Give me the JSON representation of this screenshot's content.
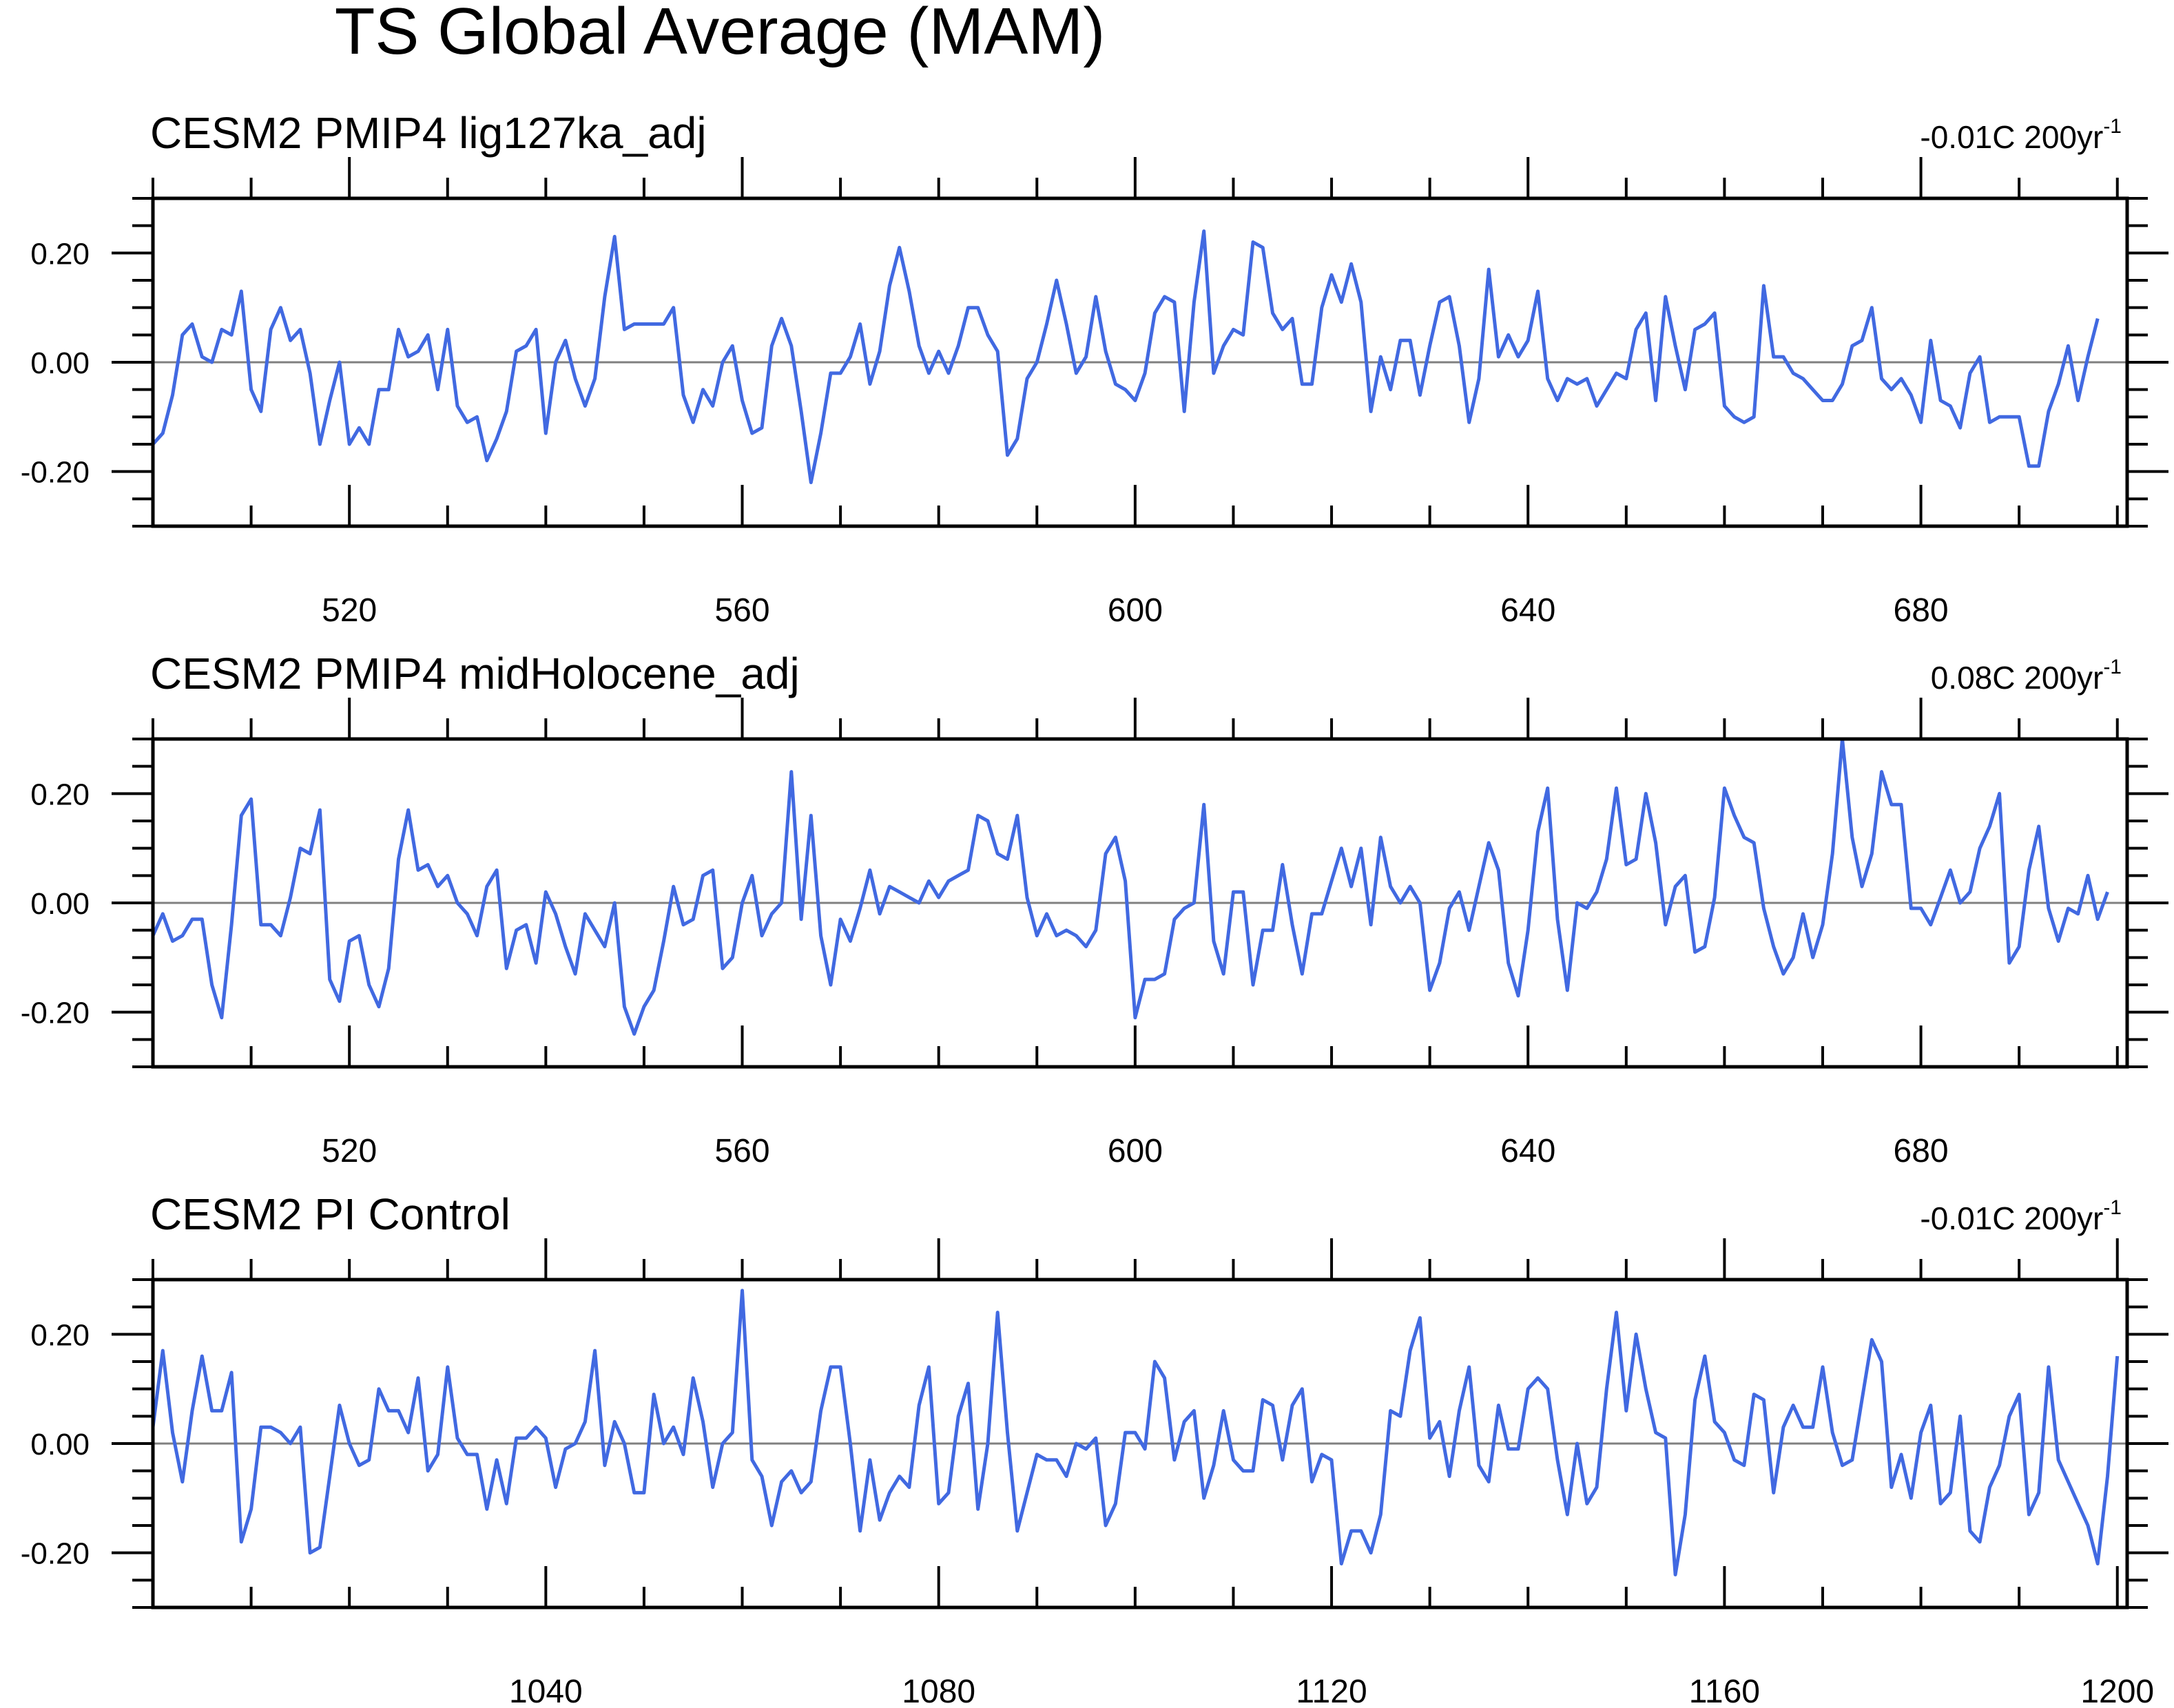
{
  "figure_title": "TS Global Average (MAM)",
  "colors": {
    "series": "#4169e1",
    "zero_line": "#808080",
    "frame": "#000000"
  },
  "chart_data": [
    {
      "type": "line",
      "title": "CESM2 PMIP4 lig127ka_adj",
      "trend_value": "-0.01C 200yr",
      "trend_exponent": "-1",
      "xlim": [
        500,
        701
      ],
      "ylim": [
        -0.3,
        0.3
      ],
      "x_ticks": [
        520,
        560,
        600,
        640,
        680
      ],
      "y_ticks": [
        0.2,
        0.0,
        -0.2
      ],
      "y_tick_labels": [
        "0.20",
        "0.00",
        "-0.20"
      ],
      "zero_line": true,
      "series": [
        {
          "x_start": 500,
          "x_step": 1,
          "values": [
            -0.15,
            -0.13,
            -0.06,
            0.05,
            0.07,
            0.01,
            0.0,
            0.06,
            0.05,
            0.13,
            -0.05,
            -0.09,
            0.06,
            0.1,
            0.04,
            0.06,
            -0.02,
            -0.15,
            -0.07,
            0.0,
            -0.15,
            -0.12,
            -0.15,
            -0.05,
            -0.05,
            0.06,
            0.01,
            0.02,
            0.05,
            -0.05,
            0.06,
            -0.08,
            -0.11,
            -0.1,
            -0.18,
            -0.14,
            -0.09,
            0.02,
            0.03,
            0.06,
            -0.13,
            0.0,
            0.04,
            -0.03,
            -0.08,
            -0.03,
            0.12,
            0.23,
            0.06,
            0.07,
            0.07,
            0.07,
            0.07,
            0.1,
            -0.06,
            -0.11,
            -0.05,
            -0.08,
            0.0,
            0.03,
            -0.07,
            -0.13,
            -0.12,
            0.03,
            0.08,
            0.03,
            -0.09,
            -0.22,
            -0.13,
            -0.02,
            -0.02,
            0.01,
            0.07,
            -0.04,
            0.02,
            0.14,
            0.21,
            0.13,
            0.03,
            -0.02,
            0.02,
            -0.02,
            0.03,
            0.1,
            0.1,
            0.05,
            0.02,
            -0.17,
            -0.14,
            -0.03,
            0.0,
            0.07,
            0.15,
            0.07,
            -0.02,
            0.01,
            0.12,
            0.02,
            -0.04,
            -0.05,
            -0.07,
            -0.02,
            0.09,
            0.12,
            0.11,
            -0.09,
            0.11,
            0.24,
            -0.02,
            0.03,
            0.06,
            0.05,
            0.22,
            0.21,
            0.09,
            0.06,
            0.08,
            -0.04,
            -0.04,
            0.1,
            0.16,
            0.11,
            0.18,
            0.11,
            -0.09,
            0.01,
            -0.05,
            0.04,
            0.04,
            -0.06,
            0.03,
            0.11,
            0.12,
            0.03,
            -0.11,
            -0.03,
            0.17,
            0.01,
            0.05,
            0.01,
            0.04,
            0.13,
            -0.03,
            -0.07,
            -0.03,
            -0.04,
            -0.03,
            -0.08,
            -0.05,
            -0.02,
            -0.03,
            0.06,
            0.09,
            -0.07,
            0.12,
            0.03,
            -0.05,
            0.06,
            0.07,
            0.09,
            -0.08,
            -0.1,
            -0.11,
            -0.1,
            0.14,
            0.01,
            0.01,
            -0.02,
            -0.03,
            -0.05,
            -0.07,
            -0.07,
            -0.04,
            0.03,
            0.04,
            0.1,
            -0.03,
            -0.05,
            -0.03,
            -0.06,
            -0.11,
            0.04,
            -0.07,
            -0.08,
            -0.12,
            -0.02,
            0.01,
            -0.11,
            -0.1,
            -0.1,
            -0.1,
            -0.19,
            -0.19,
            -0.09,
            -0.04,
            0.03,
            -0.07,
            0.01,
            0.08
          ]
        }
      ]
    },
    {
      "type": "line",
      "title": "CESM2 PMIP4 midHolocene_adj",
      "trend_value": "0.08C 200yr",
      "trend_exponent": "-1",
      "xlim": [
        500,
        701
      ],
      "ylim": [
        -0.3,
        0.3
      ],
      "x_ticks": [
        520,
        560,
        600,
        640,
        680
      ],
      "y_ticks": [
        0.2,
        0.0,
        -0.2
      ],
      "y_tick_labels": [
        "0.20",
        "0.00",
        "-0.20"
      ],
      "zero_line": true,
      "series": [
        {
          "x_start": 500,
          "x_step": 1,
          "values": [
            -0.06,
            -0.02,
            -0.07,
            -0.06,
            -0.03,
            -0.03,
            -0.15,
            -0.21,
            -0.04,
            0.16,
            0.19,
            -0.04,
            -0.04,
            -0.06,
            0.01,
            0.1,
            0.09,
            0.17,
            -0.14,
            -0.18,
            -0.07,
            -0.06,
            -0.15,
            -0.19,
            -0.12,
            0.08,
            0.17,
            0.06,
            0.07,
            0.03,
            0.05,
            0.0,
            -0.02,
            -0.06,
            0.03,
            0.06,
            -0.12,
            -0.05,
            -0.04,
            -0.11,
            0.02,
            -0.02,
            -0.08,
            -0.13,
            -0.02,
            -0.05,
            -0.08,
            0.0,
            -0.19,
            -0.24,
            -0.19,
            -0.16,
            -0.07,
            0.03,
            -0.04,
            -0.03,
            0.05,
            0.06,
            -0.12,
            -0.1,
            0.0,
            0.05,
            -0.06,
            -0.02,
            0.0,
            0.24,
            -0.03,
            0.16,
            -0.06,
            -0.15,
            -0.03,
            -0.07,
            -0.01,
            0.06,
            -0.02,
            0.03,
            0.02,
            0.01,
            0.0,
            0.04,
            0.01,
            0.04,
            0.05,
            0.06,
            0.16,
            0.15,
            0.09,
            0.08,
            0.16,
            0.01,
            -0.06,
            -0.02,
            -0.06,
            -0.05,
            -0.06,
            -0.08,
            -0.05,
            0.09,
            0.12,
            0.04,
            -0.21,
            -0.14,
            -0.14,
            -0.13,
            -0.03,
            -0.01,
            0.0,
            0.18,
            -0.07,
            -0.13,
            0.02,
            0.02,
            -0.15,
            -0.05,
            -0.05,
            0.07,
            -0.04,
            -0.13,
            -0.02,
            -0.02,
            0.04,
            0.1,
            0.03,
            0.1,
            -0.04,
            0.12,
            0.03,
            0.0,
            0.03,
            0.0,
            -0.16,
            -0.11,
            -0.01,
            0.02,
            -0.05,
            0.03,
            0.11,
            0.06,
            -0.11,
            -0.17,
            -0.05,
            0.13,
            0.21,
            -0.03,
            -0.16,
            0.0,
            -0.01,
            0.02,
            0.08,
            0.21,
            0.07,
            0.08,
            0.2,
            0.11,
            -0.04,
            0.03,
            0.05,
            -0.09,
            -0.08,
            0.01,
            0.21,
            0.16,
            0.12,
            0.11,
            -0.01,
            -0.08,
            -0.13,
            -0.1,
            -0.02,
            -0.1,
            -0.04,
            0.09,
            0.3,
            0.12,
            0.03,
            0.09,
            0.24,
            0.18,
            0.18,
            -0.01,
            -0.01,
            -0.04,
            0.01,
            0.06,
            0.0,
            0.02,
            0.1,
            0.14,
            0.2,
            -0.11,
            -0.08,
            0.06,
            0.14,
            -0.01,
            -0.07,
            -0.01,
            -0.02,
            0.05,
            -0.03,
            0.02
          ]
        }
      ]
    },
    {
      "type": "line",
      "title": "CESM2 PI Control",
      "trend_value": "-0.01C 200yr",
      "trend_exponent": "-1",
      "xlim": [
        1000,
        1201
      ],
      "ylim": [
        -0.3,
        0.3
      ],
      "x_ticks": [
        1040,
        1080,
        1120,
        1160,
        1200
      ],
      "y_ticks": [
        0.2,
        0.0,
        -0.2
      ],
      "y_tick_labels": [
        "0.20",
        "0.00",
        "-0.20"
      ],
      "zero_line": true,
      "series": [
        {
          "x_start": 1000,
          "x_step": 1,
          "values": [
            0.03,
            0.17,
            0.02,
            -0.07,
            0.06,
            0.16,
            0.06,
            0.06,
            0.13,
            -0.18,
            -0.12,
            0.03,
            0.03,
            0.02,
            0.0,
            0.03,
            -0.2,
            -0.19,
            -0.06,
            0.07,
            0.0,
            -0.04,
            -0.03,
            0.1,
            0.06,
            0.06,
            0.02,
            0.12,
            -0.05,
            -0.02,
            0.14,
            0.01,
            -0.02,
            -0.02,
            -0.12,
            -0.03,
            -0.11,
            0.01,
            0.01,
            0.03,
            0.01,
            -0.08,
            -0.01,
            0.0,
            0.04,
            0.17,
            -0.04,
            0.04,
            0.0,
            -0.09,
            -0.09,
            0.09,
            0.0,
            0.03,
            -0.02,
            0.12,
            0.04,
            -0.08,
            0.0,
            0.02,
            0.28,
            -0.03,
            -0.06,
            -0.15,
            -0.07,
            -0.05,
            -0.09,
            -0.07,
            0.06,
            0.14,
            0.14,
            0.0,
            -0.16,
            -0.03,
            -0.14,
            -0.09,
            -0.06,
            -0.08,
            0.07,
            0.14,
            -0.11,
            -0.09,
            0.05,
            0.11,
            -0.12,
            0.0,
            0.24,
            0.02,
            -0.16,
            -0.09,
            -0.02,
            -0.03,
            -0.03,
            -0.06,
            0.0,
            -0.01,
            0.01,
            -0.15,
            -0.11,
            0.02,
            0.02,
            -0.01,
            0.15,
            0.12,
            -0.03,
            0.04,
            0.06,
            -0.1,
            -0.04,
            0.06,
            -0.03,
            -0.05,
            -0.05,
            0.08,
            0.07,
            -0.03,
            0.07,
            0.1,
            -0.07,
            -0.02,
            -0.03,
            -0.22,
            -0.16,
            -0.16,
            -0.2,
            -0.13,
            0.06,
            0.05,
            0.17,
            0.23,
            0.01,
            0.04,
            -0.06,
            0.06,
            0.14,
            -0.04,
            -0.07,
            0.07,
            -0.01,
            -0.01,
            0.1,
            0.12,
            0.1,
            -0.03,
            -0.13,
            0.0,
            -0.11,
            -0.08,
            0.1,
            0.24,
            0.06,
            0.2,
            0.1,
            0.02,
            0.01,
            -0.24,
            -0.13,
            0.08,
            0.16,
            0.04,
            0.02,
            -0.03,
            -0.04,
            0.09,
            0.08,
            -0.09,
            0.03,
            0.07,
            0.03,
            0.03,
            0.14,
            0.02,
            -0.04,
            -0.03,
            0.08,
            0.19,
            0.15,
            -0.08,
            -0.02,
            -0.1,
            0.02,
            0.07,
            -0.11,
            -0.09,
            0.05,
            -0.16,
            -0.18,
            -0.08,
            -0.04,
            0.05,
            0.09,
            -0.13,
            -0.09,
            0.14,
            -0.03,
            -0.07,
            -0.11,
            -0.15,
            -0.22,
            -0.06,
            0.16
          ]
        }
      ]
    }
  ]
}
